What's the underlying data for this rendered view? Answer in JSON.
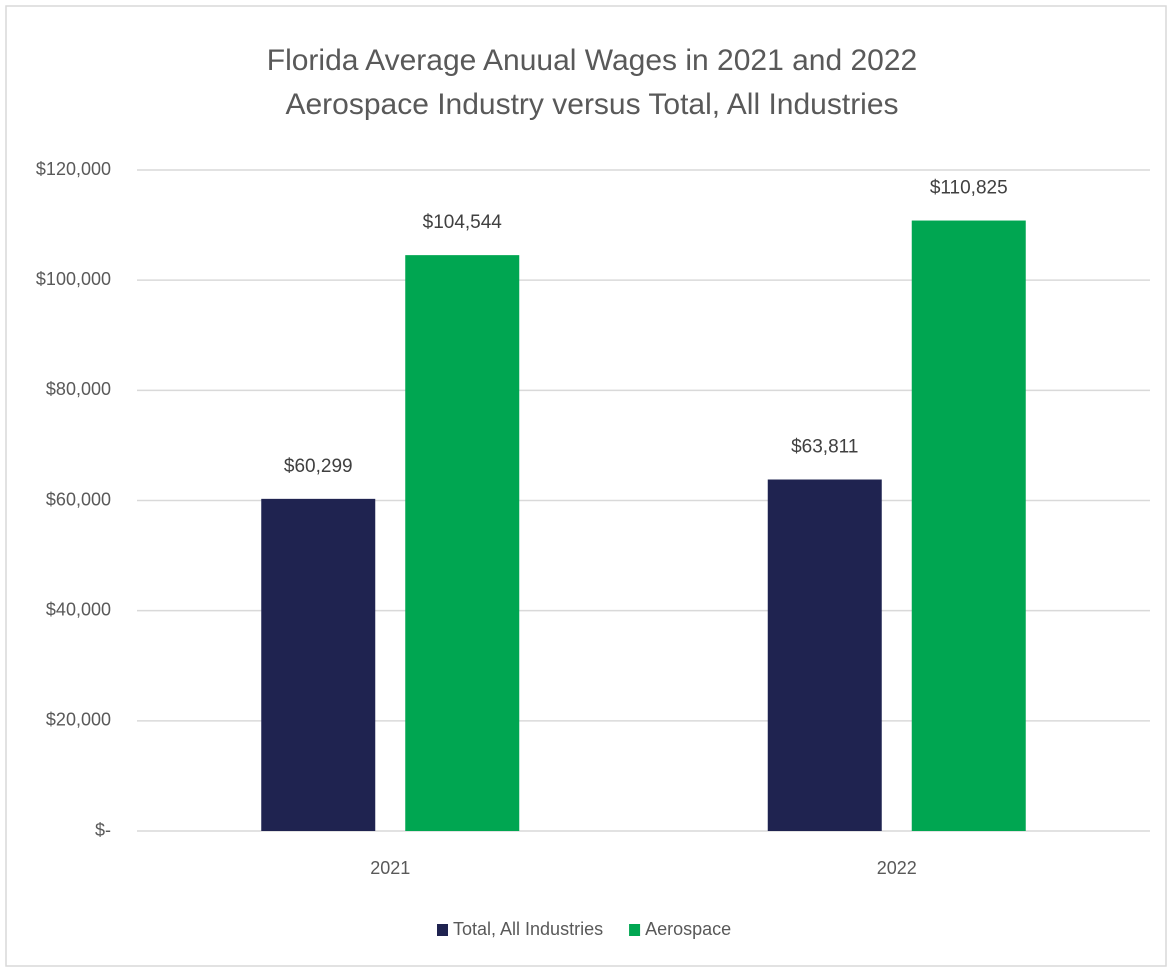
{
  "chart_data": {
    "type": "bar",
    "title": "Florida Average Anuual Wages in 2021 and 2022",
    "subtitle": "Aerospace Industry versus Total, All Industries",
    "categories": [
      "2021",
      "2022"
    ],
    "series": [
      {
        "name": "Total, All Industries",
        "color": "#1f2350",
        "values": [
          60299,
          63811
        ],
        "value_labels": [
          "$60,299",
          "$63,811"
        ]
      },
      {
        "name": "Aerospace",
        "color": "#00a651",
        "values": [
          104544,
          110825
        ],
        "value_labels": [
          "$104,544",
          "$110,825"
        ]
      }
    ],
    "ylim": [
      0,
      120000
    ],
    "yticks": [
      {
        "value": 0,
        "label": "$-"
      },
      {
        "value": 20000,
        "label": "$20,000"
      },
      {
        "value": 40000,
        "label": "$40,000"
      },
      {
        "value": 60000,
        "label": "$60,000"
      },
      {
        "value": 80000,
        "label": "$80,000"
      },
      {
        "value": 100000,
        "label": "$100,000"
      },
      {
        "value": 120000,
        "label": "$120,000"
      }
    ],
    "grid": true,
    "legend": "bottom"
  }
}
